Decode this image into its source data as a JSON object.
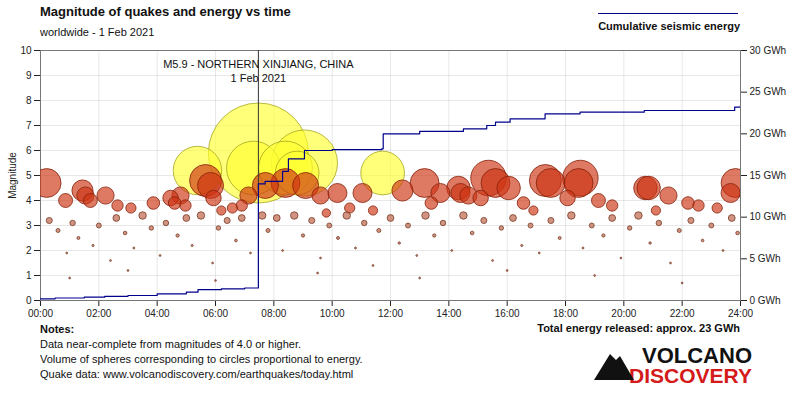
{
  "chart_data": {
    "type": "scatter",
    "title": "Magnitude of quakes and energy vs time",
    "subtitle": "worldwide -  1 Feb 2021",
    "y_label": "Magnitude",
    "xlim": [
      0,
      24
    ],
    "xticks": [
      {
        "value": 0,
        "label": "00:00"
      },
      {
        "value": 2,
        "label": "02:00"
      },
      {
        "value": 4,
        "label": "04:00"
      },
      {
        "value": 6,
        "label": "06:00"
      },
      {
        "value": 8,
        "label": "08:00"
      },
      {
        "value": 10,
        "label": "10:00"
      },
      {
        "value": 12,
        "label": "12:00"
      },
      {
        "value": 14,
        "label": "14:00"
      },
      {
        "value": 16,
        "label": "16:00"
      },
      {
        "value": 18,
        "label": "18:00"
      },
      {
        "value": 20,
        "label": "20:00"
      },
      {
        "value": 22,
        "label": "22:00"
      },
      {
        "value": 24,
        "label": "24:00"
      }
    ],
    "ylim": [
      0,
      10
    ],
    "yticks": [
      0,
      1,
      2,
      3,
      4,
      5,
      6,
      7,
      8,
      9,
      10
    ],
    "y2lim": [
      0,
      30
    ],
    "y2ticks": [
      {
        "value": 0,
        "label": "0 GWh"
      },
      {
        "value": 5,
        "label": "5 GWh"
      },
      {
        "value": 10,
        "label": "10 GWh"
      },
      {
        "value": 15,
        "label": "15 GWh"
      },
      {
        "value": 20,
        "label": "20 GWh"
      },
      {
        "value": 25,
        "label": "25 GWh"
      },
      {
        "value": 30,
        "label": "30 GWh"
      }
    ],
    "grid": true,
    "legend": "top-right",
    "series": [
      {
        "type": "scatter",
        "color": "#ffff33",
        "x": [
          5.38,
          7.3,
          7.47,
          8.4,
          8.8,
          9.05,
          11.73
        ],
        "values": [
          5.2,
          5.3,
          5.9,
          5.3,
          5.1,
          5.5,
          5.1
        ]
      },
      {
        "type": "scatter",
        "color": "#cc3311",
        "x": [
          0.21,
          0.86,
          1.44,
          1.54,
          1.71,
          2.23,
          2.64,
          3.1,
          3.87,
          4.46,
          4.6,
          4.8,
          4.97,
          5.66,
          5.83,
          5.93,
          6.2,
          6.58,
          6.9,
          7.13,
          7.71,
          8.4,
          9.09,
          9.6,
          9.8,
          10.18,
          10.6,
          11.04,
          11.4,
          12.41,
          13.17,
          13.4,
          13.71,
          14.33,
          14.4,
          14.67,
          15.09,
          15.36,
          15.6,
          16.05,
          16.56,
          16.9,
          17.31,
          17.49,
          18.07,
          18.45,
          18.51,
          19.13,
          19.6,
          20.74,
          20.85,
          21.1,
          21.53,
          22.2,
          22.56,
          23.2,
          23.66,
          23.83
        ],
        "values": [
          4.7,
          4.0,
          4.4,
          4.2,
          4.0,
          4.2,
          3.8,
          3.7,
          3.9,
          4.1,
          3.9,
          4.2,
          3.8,
          4.8,
          4.6,
          4.1,
          3.6,
          3.7,
          3.8,
          4.2,
          4.6,
          4.7,
          4.6,
          4.2,
          3.5,
          4.3,
          3.7,
          4.3,
          3.6,
          4.4,
          4.7,
          3.9,
          4.3,
          4.5,
          4.3,
          4.2,
          4.1,
          4.9,
          4.7,
          4.5,
          3.9,
          3.6,
          4.8,
          4.7,
          4.1,
          4.7,
          4.9,
          4.0,
          3.8,
          4.5,
          4.5,
          3.6,
          4.2,
          3.9,
          3.8,
          3.7,
          4.3,
          4.7
        ]
      },
      {
        "type": "scatter",
        "color": "#b85a3c",
        "x": [
          0.3,
          0.6,
          0.9,
          1.0,
          1.1,
          1.3,
          1.8,
          2.0,
          2.4,
          2.6,
          2.9,
          3.0,
          3.2,
          3.5,
          3.8,
          4.1,
          4.3,
          4.7,
          5.0,
          5.2,
          5.5,
          5.9,
          6.0,
          6.1,
          6.4,
          6.7,
          6.9,
          7.2,
          7.6,
          7.8,
          8.1,
          8.3,
          8.7,
          9.0,
          9.3,
          9.5,
          9.6,
          9.9,
          10.2,
          10.5,
          10.8,
          11.1,
          11.4,
          11.6,
          12.0,
          12.3,
          12.6,
          12.9,
          13.0,
          13.2,
          13.5,
          13.8,
          14.1,
          14.5,
          14.8,
          15.2,
          15.5,
          15.8,
          16.0,
          16.2,
          16.5,
          16.8,
          17.1,
          17.5,
          17.8,
          18.2,
          18.6,
          18.9,
          19.0,
          19.3,
          19.6,
          19.9,
          20.2,
          20.5,
          20.9,
          21.2,
          21.6,
          21.9,
          22.0,
          22.3,
          22.7,
          23.0,
          23.4,
          23.7,
          23.9
        ],
        "values": [
          3.2,
          2.8,
          1.9,
          0.9,
          3.1,
          2.5,
          2.2,
          3.0,
          1.6,
          3.3,
          2.7,
          1.2,
          2.1,
          3.4,
          2.9,
          1.8,
          3.1,
          2.6,
          3.3,
          2.2,
          3.4,
          1.5,
          0.8,
          2.9,
          3.2,
          2.4,
          3.3,
          1.9,
          3.4,
          2.8,
          3.3,
          2.0,
          3.4,
          2.6,
          3.2,
          1.1,
          1.7,
          3.0,
          2.5,
          3.4,
          2.1,
          3.1,
          1.4,
          2.8,
          3.3,
          2.3,
          3.0,
          1.8,
          0.9,
          3.4,
          2.6,
          3.1,
          2.0,
          3.4,
          2.7,
          3.2,
          1.6,
          2.9,
          1.2,
          3.3,
          2.2,
          3.0,
          1.9,
          3.2,
          2.5,
          3.4,
          2.1,
          3.0,
          1.0,
          2.6,
          3.3,
          1.7,
          2.9,
          3.4,
          2.3,
          3.1,
          1.5,
          2.8,
          0.7,
          3.2,
          2.4,
          3.0,
          2.0,
          3.3,
          2.7
        ]
      },
      {
        "name": "Cumulative seismic energy",
        "type": "line",
        "axis": "y2",
        "color": "#00008b",
        "line_style": "solid",
        "x": [
          0,
          0.5,
          1.5,
          2.2,
          3.0,
          4.0,
          5.0,
          5.4,
          6.2,
          7.0,
          7.47,
          7.7,
          8.3,
          8.5,
          9.05,
          10.0,
          11.7,
          11.75,
          13.0,
          14.5,
          15.3,
          15.6,
          16.1,
          17.3,
          18.5,
          20.7,
          23.8,
          24
        ],
        "values": [
          0.2,
          0.3,
          0.4,
          0.5,
          0.6,
          0.8,
          1.0,
          1.3,
          1.4,
          1.5,
          14.0,
          14.3,
          15.5,
          17.0,
          18.0,
          18.1,
          18.2,
          20.0,
          20.3,
          20.6,
          21.0,
          21.4,
          21.8,
          22.4,
          22.6,
          22.8,
          23.2,
          23.4
        ]
      }
    ],
    "annotations": [
      {
        "lines": [
          "M5.9 - NORTHERN XINJIANG, CHINA",
          "1 Feb 2021"
        ],
        "x": 7.47,
        "y": 5.9
      }
    ],
    "notes": {
      "heading": "Notes:",
      "lines": [
        "Data near-complete from magnitudes of 4.0 or higher.",
        "Volume of spheres corresponding to circles proportional to energy.",
        "Quake data: www.volcanodiscovery.com/earthquakes/today.html"
      ]
    },
    "total": "Total energy released: approx. 23 GWh",
    "logo": [
      "VOLCANO",
      "DISCOVERY"
    ]
  }
}
